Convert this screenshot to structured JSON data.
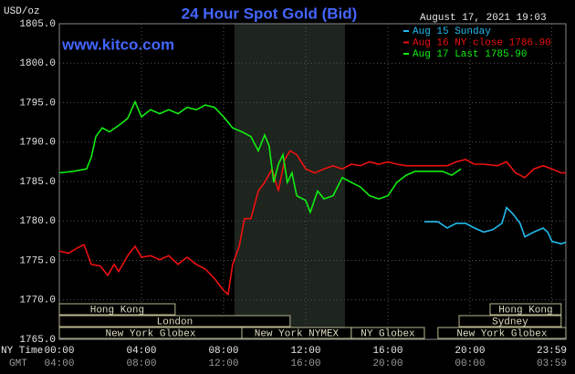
{
  "chart_data": {
    "type": "line",
    "title": "24 Hour Spot Gold (Bid)",
    "y_unit": "USD/oz",
    "timestamp": "August 17, 2021 19:03",
    "source": "www.kitco.com",
    "x_axis_labels": [
      "NY Time",
      "GMT"
    ],
    "xlim": [
      0,
      24.67
    ],
    "xticks": [
      {
        "value": 0,
        "label": "00:00"
      },
      {
        "value": 4,
        "label": "04:00"
      },
      {
        "value": 8,
        "label": "08:00"
      },
      {
        "value": 12,
        "label": "12:00"
      },
      {
        "value": 16,
        "label": "16:00"
      },
      {
        "value": 20,
        "label": "20:00"
      },
      {
        "value": 23.98,
        "label": "23:59"
      }
    ],
    "gmt_labels": [
      "04:00",
      "08:00",
      "12:00",
      "16:00",
      "20:00",
      "00:00",
      "03:59"
    ],
    "ylim": [
      1765,
      1805
    ],
    "yticks": [
      {
        "value": 1765,
        "label": "1765.0"
      },
      {
        "value": 1770,
        "label": "1770.0"
      },
      {
        "value": 1775,
        "label": "1775.0"
      },
      {
        "value": 1780,
        "label": "1780.0"
      },
      {
        "value": 1785,
        "label": "1785.0"
      },
      {
        "value": 1790,
        "label": "1790.0"
      },
      {
        "value": 1795,
        "label": "1795.0"
      },
      {
        "value": 1800,
        "label": "1800.0"
      },
      {
        "value": 1805,
        "label": "1805.0"
      }
    ],
    "grid": true,
    "highlight": [
      8.53,
      13.91
    ],
    "sessions": [
      [
        {
          "label": "Hong Kong",
          "start": 0,
          "end": 5.64
        },
        {
          "label": "Hong Kong",
          "start": 20.98,
          "end": 24.44
        }
      ],
      [
        {
          "label": "London",
          "start": 0,
          "end": 11.24
        },
        {
          "label": "Sydney",
          "start": 19.47,
          "end": 24.44
        }
      ],
      [
        {
          "label": "New York Globex",
          "start": 0,
          "end": 8.89
        },
        {
          "label": "New York NYMEX",
          "start": 8.89,
          "end": 14.22
        },
        {
          "label": "NY Globex",
          "start": 14.22,
          "end": 17.78
        },
        {
          "label": "New York Globex",
          "start": 18.44,
          "end": 24.67
        }
      ]
    ],
    "series": [
      {
        "name": "Aug 15 Sunday",
        "color": "#22bbee",
        "x": [
          17.78,
          18.44,
          18.89,
          19.33,
          19.78,
          20.22,
          20.67,
          21.11,
          21.56,
          21.78,
          22.09,
          22.44,
          22.67,
          23.11,
          23.56,
          23.78,
          24.0,
          24.44,
          24.67
        ],
        "values": [
          1779.9,
          1779.9,
          1779.1,
          1779.7,
          1779.7,
          1779.1,
          1778.6,
          1778.9,
          1779.7,
          1781.7,
          1780.9,
          1779.7,
          1778.0,
          1778.6,
          1779.1,
          1778.6,
          1777.4,
          1777.1,
          1777.3
        ]
      },
      {
        "name": "Aug 16 NY close 1786.90",
        "color": "#ee1111",
        "x": [
          0,
          0.44,
          0.89,
          1.2,
          1.56,
          2.0,
          2.36,
          2.67,
          2.89,
          3.33,
          3.69,
          4.0,
          4.44,
          4.89,
          5.33,
          5.78,
          6.22,
          6.67,
          7.11,
          7.56,
          8.0,
          8.22,
          8.44,
          8.76,
          9.02,
          9.33,
          9.69,
          10.0,
          10.36,
          10.67,
          10.98,
          11.24,
          11.56,
          12.0,
          12.44,
          12.89,
          13.33,
          13.78,
          14.22,
          14.67,
          15.11,
          15.56,
          16.0,
          16.44,
          16.89,
          17.56,
          18.22,
          18.89,
          19.33,
          19.78,
          20.22,
          20.67,
          21.33,
          21.78,
          22.22,
          22.67,
          23.11,
          23.56,
          24.0,
          24.44,
          24.67
        ],
        "values": [
          1776.2,
          1775.9,
          1776.6,
          1777.0,
          1774.5,
          1774.3,
          1773.1,
          1774.5,
          1773.6,
          1775.6,
          1776.8,
          1775.4,
          1775.6,
          1775.1,
          1775.6,
          1774.5,
          1775.4,
          1774.5,
          1773.9,
          1772.7,
          1771.2,
          1770.7,
          1774.5,
          1776.8,
          1780.3,
          1780.3,
          1783.8,
          1784.9,
          1786.6,
          1783.8,
          1787.8,
          1788.9,
          1788.4,
          1786.6,
          1786.1,
          1786.6,
          1787.0,
          1786.6,
          1787.2,
          1787.0,
          1787.5,
          1787.2,
          1787.5,
          1787.2,
          1787.0,
          1787.0,
          1787.0,
          1787.0,
          1787.5,
          1787.8,
          1787.2,
          1787.2,
          1787.0,
          1787.5,
          1786.1,
          1785.5,
          1786.6,
          1787.0,
          1786.6,
          1786.1,
          1786.1
        ]
      },
      {
        "name": "Aug 17 Last 1785.90",
        "color": "#11ee11",
        "x": [
          0,
          0.67,
          1.33,
          1.56,
          1.78,
          2.09,
          2.44,
          2.89,
          3.33,
          3.69,
          4.0,
          4.44,
          4.89,
          5.33,
          5.78,
          6.22,
          6.67,
          7.11,
          7.56,
          8.0,
          8.44,
          8.89,
          9.33,
          9.69,
          10.0,
          10.22,
          10.44,
          10.67,
          10.89,
          11.11,
          11.33,
          11.56,
          12.0,
          12.22,
          12.58,
          12.89,
          13.33,
          13.78,
          14.22,
          14.67,
          15.11,
          15.56,
          16.0,
          16.44,
          16.89,
          17.33,
          18.0,
          18.67,
          19.11,
          19.56
        ],
        "values": [
          1786.1,
          1786.3,
          1786.6,
          1788.1,
          1790.7,
          1791.8,
          1791.3,
          1792.1,
          1793.0,
          1795.1,
          1793.2,
          1794.1,
          1793.6,
          1794.1,
          1793.6,
          1794.4,
          1794.1,
          1794.7,
          1794.4,
          1793.2,
          1791.8,
          1791.3,
          1790.7,
          1788.9,
          1790.9,
          1789.5,
          1784.9,
          1787.2,
          1788.4,
          1784.9,
          1786.1,
          1783.2,
          1782.6,
          1781.1,
          1783.8,
          1782.8,
          1783.2,
          1785.5,
          1784.9,
          1784.3,
          1783.2,
          1782.8,
          1783.2,
          1784.9,
          1785.8,
          1786.3,
          1786.3,
          1786.3,
          1785.8,
          1786.6
        ]
      }
    ]
  }
}
